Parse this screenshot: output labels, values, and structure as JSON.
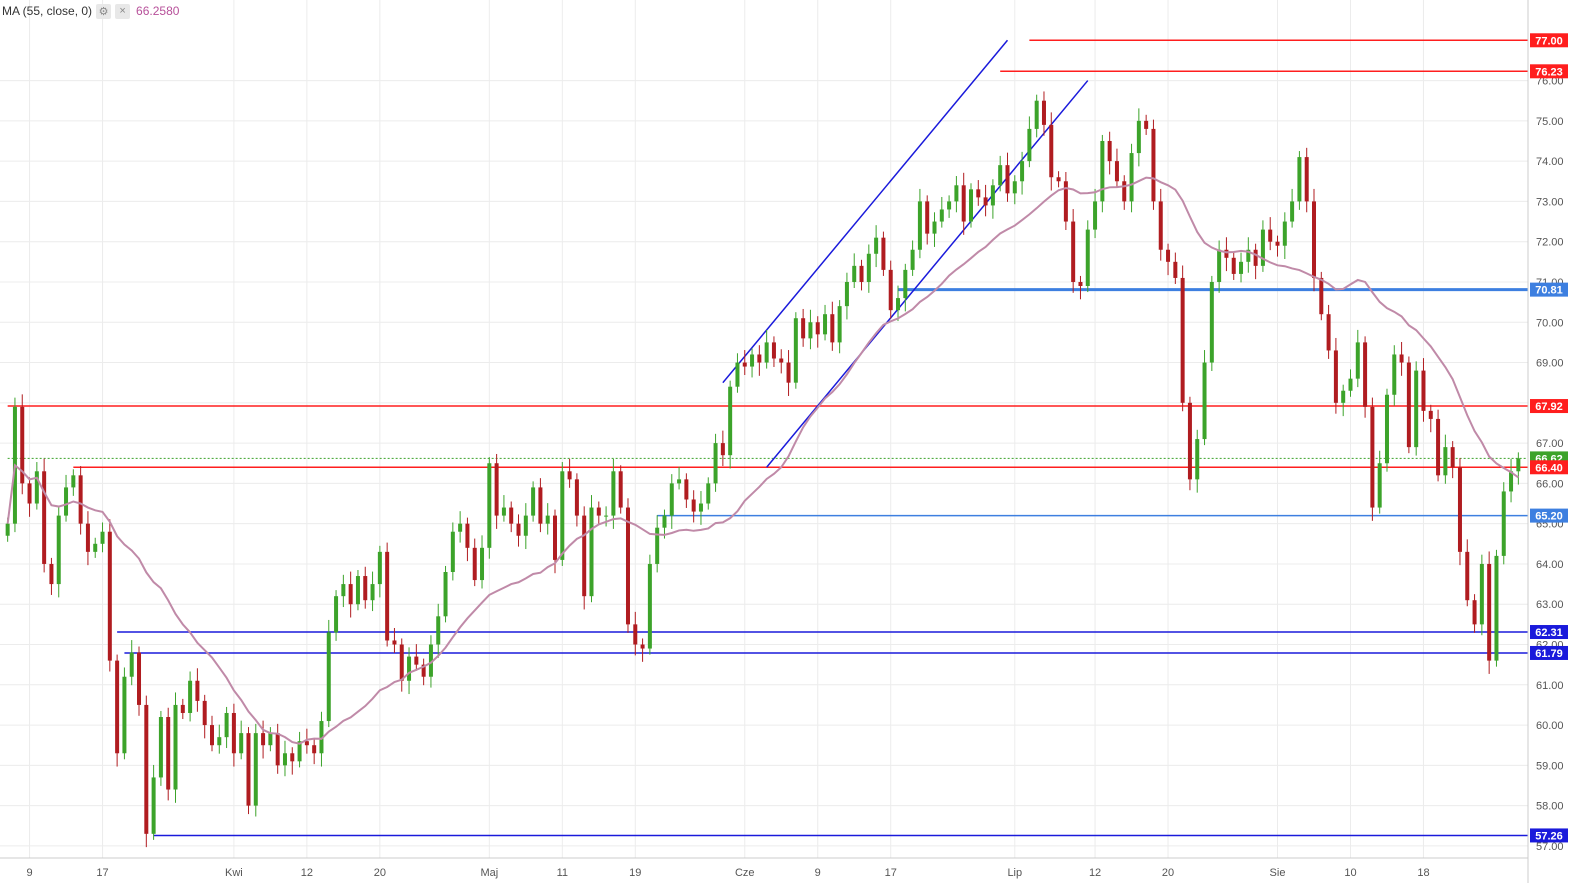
{
  "indicator": {
    "label": "MA (55, close, 0)",
    "settings_icon": "gear-icon",
    "close_icon": "close-icon",
    "value": "66.2580",
    "color": "#c08aa8"
  },
  "colors": {
    "up": "#3ca32a",
    "down": "#b01c20",
    "ma": "#c08aa8",
    "resistance": "#ff1e1e",
    "support": "#1a1adb",
    "support_light": "#3d7fe0",
    "channel": "#1a1adb",
    "last_price": "#3ca32a",
    "grid": "#ececec",
    "axis_text": "#555555"
  },
  "chart_data": {
    "type": "candlestick",
    "ylim": [
      56.7,
      78.0
    ],
    "y_ticks": [
      57,
      58,
      59,
      60,
      61,
      62,
      63,
      64,
      65,
      66,
      67,
      68,
      69,
      70,
      71,
      72,
      73,
      74,
      75,
      76
    ],
    "x_ticks": [
      {
        "label": "9",
        "index": 3
      },
      {
        "label": "17",
        "index": 13
      },
      {
        "label": "Kwi",
        "index": 31
      },
      {
        "label": "12",
        "index": 41
      },
      {
        "label": "20",
        "index": 51
      },
      {
        "label": "Maj",
        "index": 66
      },
      {
        "label": "11",
        "index": 76
      },
      {
        "label": "19",
        "index": 86
      },
      {
        "label": "Cze",
        "index": 101
      },
      {
        "label": "9",
        "index": 111
      },
      {
        "label": "17",
        "index": 121
      },
      {
        "label": "Lip",
        "index": 138
      },
      {
        "label": "12",
        "index": 149
      },
      {
        "label": "20",
        "index": 159
      },
      {
        "label": "Sie",
        "index": 174
      },
      {
        "label": "10",
        "index": 184
      },
      {
        "label": "18",
        "index": 194
      }
    ],
    "close": [
      65.0,
      67.9,
      66.0,
      65.5,
      66.3,
      64.0,
      63.5,
      65.2,
      65.9,
      66.2,
      65.0,
      64.3,
      64.5,
      64.8,
      61.6,
      59.3,
      61.2,
      61.8,
      60.5,
      57.3,
      58.7,
      60.2,
      58.4,
      60.5,
      60.3,
      61.1,
      60.6,
      60.0,
      59.5,
      59.7,
      60.3,
      59.3,
      59.8,
      58.0,
      59.8,
      59.5,
      59.8,
      59.0,
      59.3,
      59.1,
      59.6,
      59.5,
      59.3,
      60.1,
      62.3,
      63.2,
      63.5,
      63.0,
      63.7,
      63.1,
      63.5,
      64.3,
      62.1,
      62.0,
      61.1,
      61.7,
      61.5,
      61.2,
      62.0,
      62.7,
      63.8,
      64.8,
      65.0,
      64.4,
      63.6,
      64.4,
      66.5,
      65.2,
      65.4,
      65.0,
      64.7,
      65.2,
      65.9,
      65.0,
      65.2,
      64.1,
      66.3,
      66.1,
      65.2,
      63.2,
      65.4,
      65.2,
      65.2,
      66.3,
      65.4,
      62.5,
      62.0,
      61.9,
      64.0,
      64.9,
      65.2,
      66.0,
      66.1,
      65.6,
      65.3,
      65.5,
      66.0,
      67.0,
      66.7,
      68.4,
      69.0,
      68.9,
      69.2,
      69.0,
      69.5,
      69.1,
      69.0,
      68.5,
      70.1,
      69.6,
      70.0,
      69.7,
      70.2,
      69.5,
      70.4,
      71.0,
      71.4,
      71.0,
      71.7,
      72.1,
      71.3,
      70.3,
      70.6,
      71.3,
      71.8,
      73.0,
      72.2,
      72.5,
      72.8,
      73.0,
      73.4,
      72.5,
      73.3,
      73.1,
      72.9,
      73.4,
      73.9,
      73.2,
      73.5,
      74.0,
      74.8,
      75.5,
      74.9,
      73.6,
      73.5,
      72.5,
      71.0,
      70.9,
      72.3,
      73.0,
      74.5,
      74.0,
      73.5,
      73.0,
      74.2,
      75.0,
      74.8,
      73.0,
      71.8,
      71.5,
      71.1,
      68.0,
      66.1,
      67.1,
      69.0,
      71.0,
      71.8,
      71.6,
      71.2,
      71.5,
      71.8,
      71.4,
      72.3,
      72.0,
      71.9,
      72.5,
      73.0,
      74.1,
      73.0,
      71.1,
      70.2,
      69.3,
      68.0,
      68.3,
      68.6,
      69.5,
      67.9,
      65.4,
      66.5,
      68.2,
      69.2,
      69.0,
      66.9,
      68.8,
      67.8,
      67.6,
      66.2,
      66.9,
      66.4,
      64.3,
      63.1,
      62.5,
      64.0,
      61.6,
      64.2,
      65.8,
      66.3,
      66.62
    ],
    "ma_period": 55,
    "ma_value": 66.258,
    "horizontal_levels": [
      {
        "label": "77.00",
        "value": 77.0,
        "kind": "resistance",
        "start_index": 140
      },
      {
        "label": "76.23",
        "value": 76.23,
        "kind": "resistance",
        "start_index": 136
      },
      {
        "label": "70.81",
        "value": 70.81,
        "kind": "support_light",
        "start_index": 122
      },
      {
        "label": "67.92",
        "value": 67.92,
        "kind": "resistance",
        "start_index": 0
      },
      {
        "label": "66.62",
        "value": 66.62,
        "kind": "last_price",
        "start_index": 0
      },
      {
        "label": "66.40",
        "value": 66.4,
        "kind": "resistance",
        "start_index": 9
      },
      {
        "label": "65.20",
        "value": 65.2,
        "kind": "support_light",
        "start_index": 89
      },
      {
        "label": "62.31",
        "value": 62.31,
        "kind": "support",
        "start_index": 15
      },
      {
        "label": "61.79",
        "value": 61.79,
        "kind": "support",
        "start_index": 16
      },
      {
        "label": "57.26",
        "value": 57.26,
        "kind": "support",
        "start_index": 20
      }
    ],
    "trend_lines": [
      {
        "from": [
          98,
          68.5
        ],
        "to": [
          137,
          77.0
        ]
      },
      {
        "from": [
          104,
          66.4
        ],
        "to": [
          148,
          76.0
        ]
      }
    ]
  }
}
